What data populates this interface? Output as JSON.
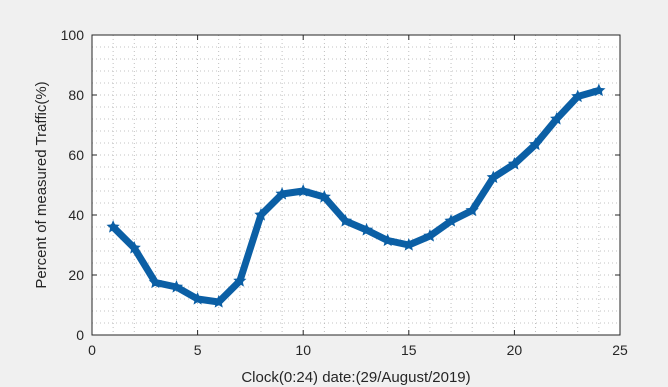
{
  "chart_data": {
    "type": "line",
    "title": "",
    "xlabel": "Clock(0:24)  date:(29/August/2019)",
    "ylabel": "Percent of measured Traffic(%)",
    "xlim": [
      0,
      25
    ],
    "ylim": [
      0,
      100
    ],
    "xticks": [
      0,
      5,
      10,
      15,
      20,
      25
    ],
    "yticks": [
      0,
      20,
      40,
      60,
      80,
      100
    ],
    "grid": "minor-dotted",
    "legend": "none",
    "series": [
      {
        "color": "#0b5fa5",
        "marker": "star",
        "x": [
          1,
          2,
          3,
          4,
          5,
          6,
          7,
          8,
          9,
          10,
          11,
          12,
          13,
          14,
          15,
          16,
          17,
          18,
          19,
          20,
          21,
          22,
          23,
          24
        ],
        "y": [
          36,
          29,
          17.5,
          16,
          12,
          11,
          18,
          40,
          47,
          48,
          46,
          38,
          35,
          31.5,
          30,
          33,
          38,
          41.5,
          52.5,
          57,
          63.5,
          72,
          79.5,
          81.5
        ]
      }
    ]
  }
}
